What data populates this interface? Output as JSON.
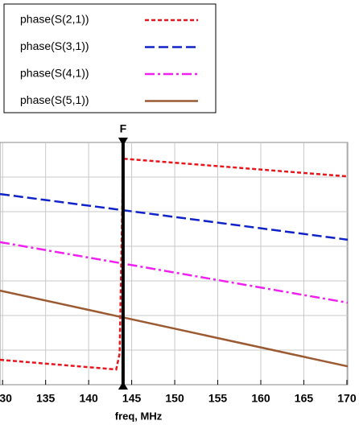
{
  "chart_data": {
    "type": "line",
    "xlabel": "freq, MHz",
    "xlim": [
      129.7,
      170.1
    ],
    "xticks": [
      130,
      135,
      140,
      145,
      150,
      155,
      160,
      165,
      170
    ],
    "ylim": [
      0,
      7
    ],
    "ygrid": [
      1,
      2,
      3,
      4,
      5,
      6
    ],
    "grid": true,
    "legend": "top-left",
    "marker": {
      "label": "F",
      "x": 144
    },
    "series": [
      {
        "name": "phase(S(2,1))",
        "color": "#e8151d",
        "dash": "5,3",
        "x": [
          129.7,
          143.2,
          143.6,
          144.0,
          170.1
        ],
        "values": [
          0.72,
          0.44,
          0.9,
          6.53,
          6.02
        ]
      },
      {
        "name": "phase(S(3,1))",
        "color": "#1023c8",
        "dash": "12,5",
        "x": [
          129.7,
          170.1
        ],
        "values": [
          5.51,
          4.19
        ]
      },
      {
        "name": "phase(S(4,1))",
        "color": "#f020f0",
        "dash": "12,4,3,4",
        "x": [
          129.7,
          170.1
        ],
        "values": [
          4.12,
          2.37
        ]
      },
      {
        "name": "phase(S(5,1))",
        "color": "#9c5a32",
        "dash": "",
        "x": [
          129.7,
          170.1
        ],
        "values": [
          2.72,
          0.53
        ]
      }
    ]
  }
}
